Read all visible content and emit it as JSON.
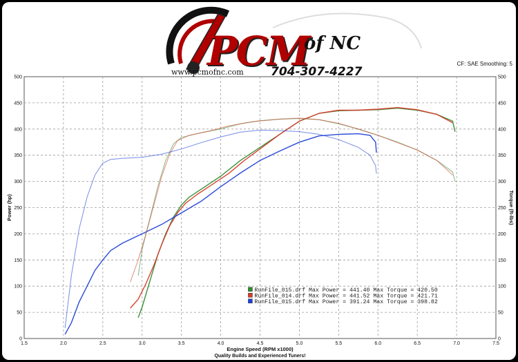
{
  "logo": {
    "brand": "PCM",
    "suffix": "of NC",
    "phone": "704-307-4227",
    "website": "www.pcmofnc.com"
  },
  "settings_text": "CF: SAE  Smoothing: 5",
  "colors": {
    "green": "#2e8b2e",
    "red": "#d83a2a",
    "blue": "#1c3fd6",
    "grid": "#9a9a9a",
    "plot_bg": "#ffffff"
  },
  "chart_data": {
    "type": "line",
    "xlabel": "Engine Speed (RPM x1000)",
    "ylabel": "Power (hp)",
    "y2label": "Torque (ft-lbs)",
    "footer": "Quality Builds and Experienced Tuners!",
    "xlim": [
      1.5,
      7.5
    ],
    "ylim": [
      0,
      500
    ],
    "y2lim": [
      0,
      500
    ],
    "x_ticks": [
      "1.5",
      "2.0",
      "2.5",
      "3.0",
      "3.5",
      "4.0",
      "4.5",
      "5.0",
      "5.5",
      "6.0",
      "6.5",
      "7.0",
      "7.5"
    ],
    "y_ticks": [
      "0",
      "50",
      "100",
      "150",
      "200",
      "250",
      "300",
      "350",
      "400",
      "450",
      "500"
    ],
    "grid": true,
    "legend_placement": "bottom-right",
    "legend": [
      {
        "text": "RunFile_015.drf Max Power = 441.40      Max Torque = 420.50",
        "color": "#2e8b2e"
      },
      {
        "text": "RunFile_014.drf Max Power = 441.52      Max Torque = 421.71",
        "color": "#d83a2a"
      },
      {
        "text": "RunFile_015.drf Max Power = 391.24      Max Torque = 398.82",
        "color": "#1c3fd6"
      }
    ],
    "series": [
      {
        "kind": "power",
        "color": "#2e8b2e",
        "points": [
          [
            2.95,
            40
          ],
          [
            3.0,
            60
          ],
          [
            3.1,
            110
          ],
          [
            3.2,
            160
          ],
          [
            3.3,
            200
          ],
          [
            3.4,
            232
          ],
          [
            3.5,
            255
          ],
          [
            3.6,
            270
          ],
          [
            3.8,
            290
          ],
          [
            4.0,
            310
          ],
          [
            4.25,
            340
          ],
          [
            4.5,
            365
          ],
          [
            4.75,
            390
          ],
          [
            5.0,
            415
          ],
          [
            5.25,
            430
          ],
          [
            5.5,
            435
          ],
          [
            5.75,
            436
          ],
          [
            6.0,
            437
          ],
          [
            6.25,
            440
          ],
          [
            6.5,
            436
          ],
          [
            6.75,
            428
          ],
          [
            6.95,
            415
          ],
          [
            6.98,
            395
          ]
        ]
      },
      {
        "kind": "power",
        "color": "#d83a2a",
        "points": [
          [
            2.85,
            58
          ],
          [
            2.95,
            75
          ],
          [
            3.05,
            105
          ],
          [
            3.15,
            140
          ],
          [
            3.25,
            180
          ],
          [
            3.35,
            215
          ],
          [
            3.45,
            240
          ],
          [
            3.55,
            258
          ],
          [
            3.7,
            275
          ],
          [
            3.9,
            295
          ],
          [
            4.1,
            315
          ],
          [
            4.3,
            340
          ],
          [
            4.5,
            362
          ],
          [
            4.75,
            390
          ],
          [
            5.0,
            415
          ],
          [
            5.25,
            430
          ],
          [
            5.5,
            436
          ],
          [
            5.75,
            436
          ],
          [
            6.0,
            438
          ],
          [
            6.25,
            441
          ],
          [
            6.5,
            437
          ],
          [
            6.75,
            428
          ],
          [
            6.95,
            412
          ]
        ]
      },
      {
        "kind": "power",
        "color": "#1c3fd6",
        "points": [
          [
            2.02,
            8
          ],
          [
            2.1,
            30
          ],
          [
            2.2,
            70
          ],
          [
            2.3,
            100
          ],
          [
            2.4,
            130
          ],
          [
            2.5,
            150
          ],
          [
            2.6,
            168
          ],
          [
            2.75,
            182
          ],
          [
            3.0,
            200
          ],
          [
            3.25,
            218
          ],
          [
            3.5,
            240
          ],
          [
            3.75,
            262
          ],
          [
            4.0,
            290
          ],
          [
            4.25,
            316
          ],
          [
            4.5,
            340
          ],
          [
            4.75,
            358
          ],
          [
            5.0,
            375
          ],
          [
            5.25,
            387
          ],
          [
            5.5,
            390
          ],
          [
            5.75,
            391
          ],
          [
            5.9,
            388
          ],
          [
            5.97,
            375
          ],
          [
            5.98,
            355
          ]
        ]
      },
      {
        "kind": "torque",
        "color": "#2e8b2e",
        "points": [
          [
            2.95,
            120
          ],
          [
            3.0,
            170
          ],
          [
            3.1,
            230
          ],
          [
            3.2,
            290
          ],
          [
            3.3,
            340
          ],
          [
            3.4,
            372
          ],
          [
            3.5,
            384
          ],
          [
            3.75,
            393
          ],
          [
            4.0,
            400
          ],
          [
            4.25,
            410
          ],
          [
            4.5,
            416
          ],
          [
            4.75,
            419
          ],
          [
            5.0,
            420
          ],
          [
            5.25,
            418
          ],
          [
            5.5,
            410
          ],
          [
            5.75,
            400
          ],
          [
            6.0,
            388
          ],
          [
            6.25,
            375
          ],
          [
            6.5,
            360
          ],
          [
            6.75,
            340
          ],
          [
            6.95,
            318
          ],
          [
            6.98,
            300
          ]
        ]
      },
      {
        "kind": "torque",
        "color": "#d83a2a",
        "points": [
          [
            2.85,
            108
          ],
          [
            2.95,
            150
          ],
          [
            3.05,
            200
          ],
          [
            3.15,
            255
          ],
          [
            3.25,
            310
          ],
          [
            3.35,
            352
          ],
          [
            3.45,
            378
          ],
          [
            3.6,
            388
          ],
          [
            3.85,
            396
          ],
          [
            4.1,
            406
          ],
          [
            4.4,
            414
          ],
          [
            4.75,
            419
          ],
          [
            5.0,
            421
          ],
          [
            5.25,
            418
          ],
          [
            5.5,
            411
          ],
          [
            5.75,
            400
          ],
          [
            6.0,
            388
          ],
          [
            6.25,
            374
          ],
          [
            6.5,
            360
          ],
          [
            6.75,
            340
          ],
          [
            6.95,
            312
          ]
        ]
      },
      {
        "kind": "torque",
        "color": "#1c3fd6",
        "points": [
          [
            2.02,
            20
          ],
          [
            2.1,
            120
          ],
          [
            2.2,
            210
          ],
          [
            2.3,
            270
          ],
          [
            2.4,
            312
          ],
          [
            2.5,
            335
          ],
          [
            2.6,
            342
          ],
          [
            2.75,
            344
          ],
          [
            3.0,
            346
          ],
          [
            3.25,
            352
          ],
          [
            3.5,
            362
          ],
          [
            3.75,
            374
          ],
          [
            4.0,
            385
          ],
          [
            4.25,
            394
          ],
          [
            4.5,
            398
          ],
          [
            4.75,
            397
          ],
          [
            5.0,
            395
          ],
          [
            5.25,
            390
          ],
          [
            5.5,
            380
          ],
          [
            5.75,
            365
          ],
          [
            5.9,
            350
          ],
          [
            5.97,
            330
          ],
          [
            5.98,
            315
          ]
        ]
      }
    ]
  }
}
